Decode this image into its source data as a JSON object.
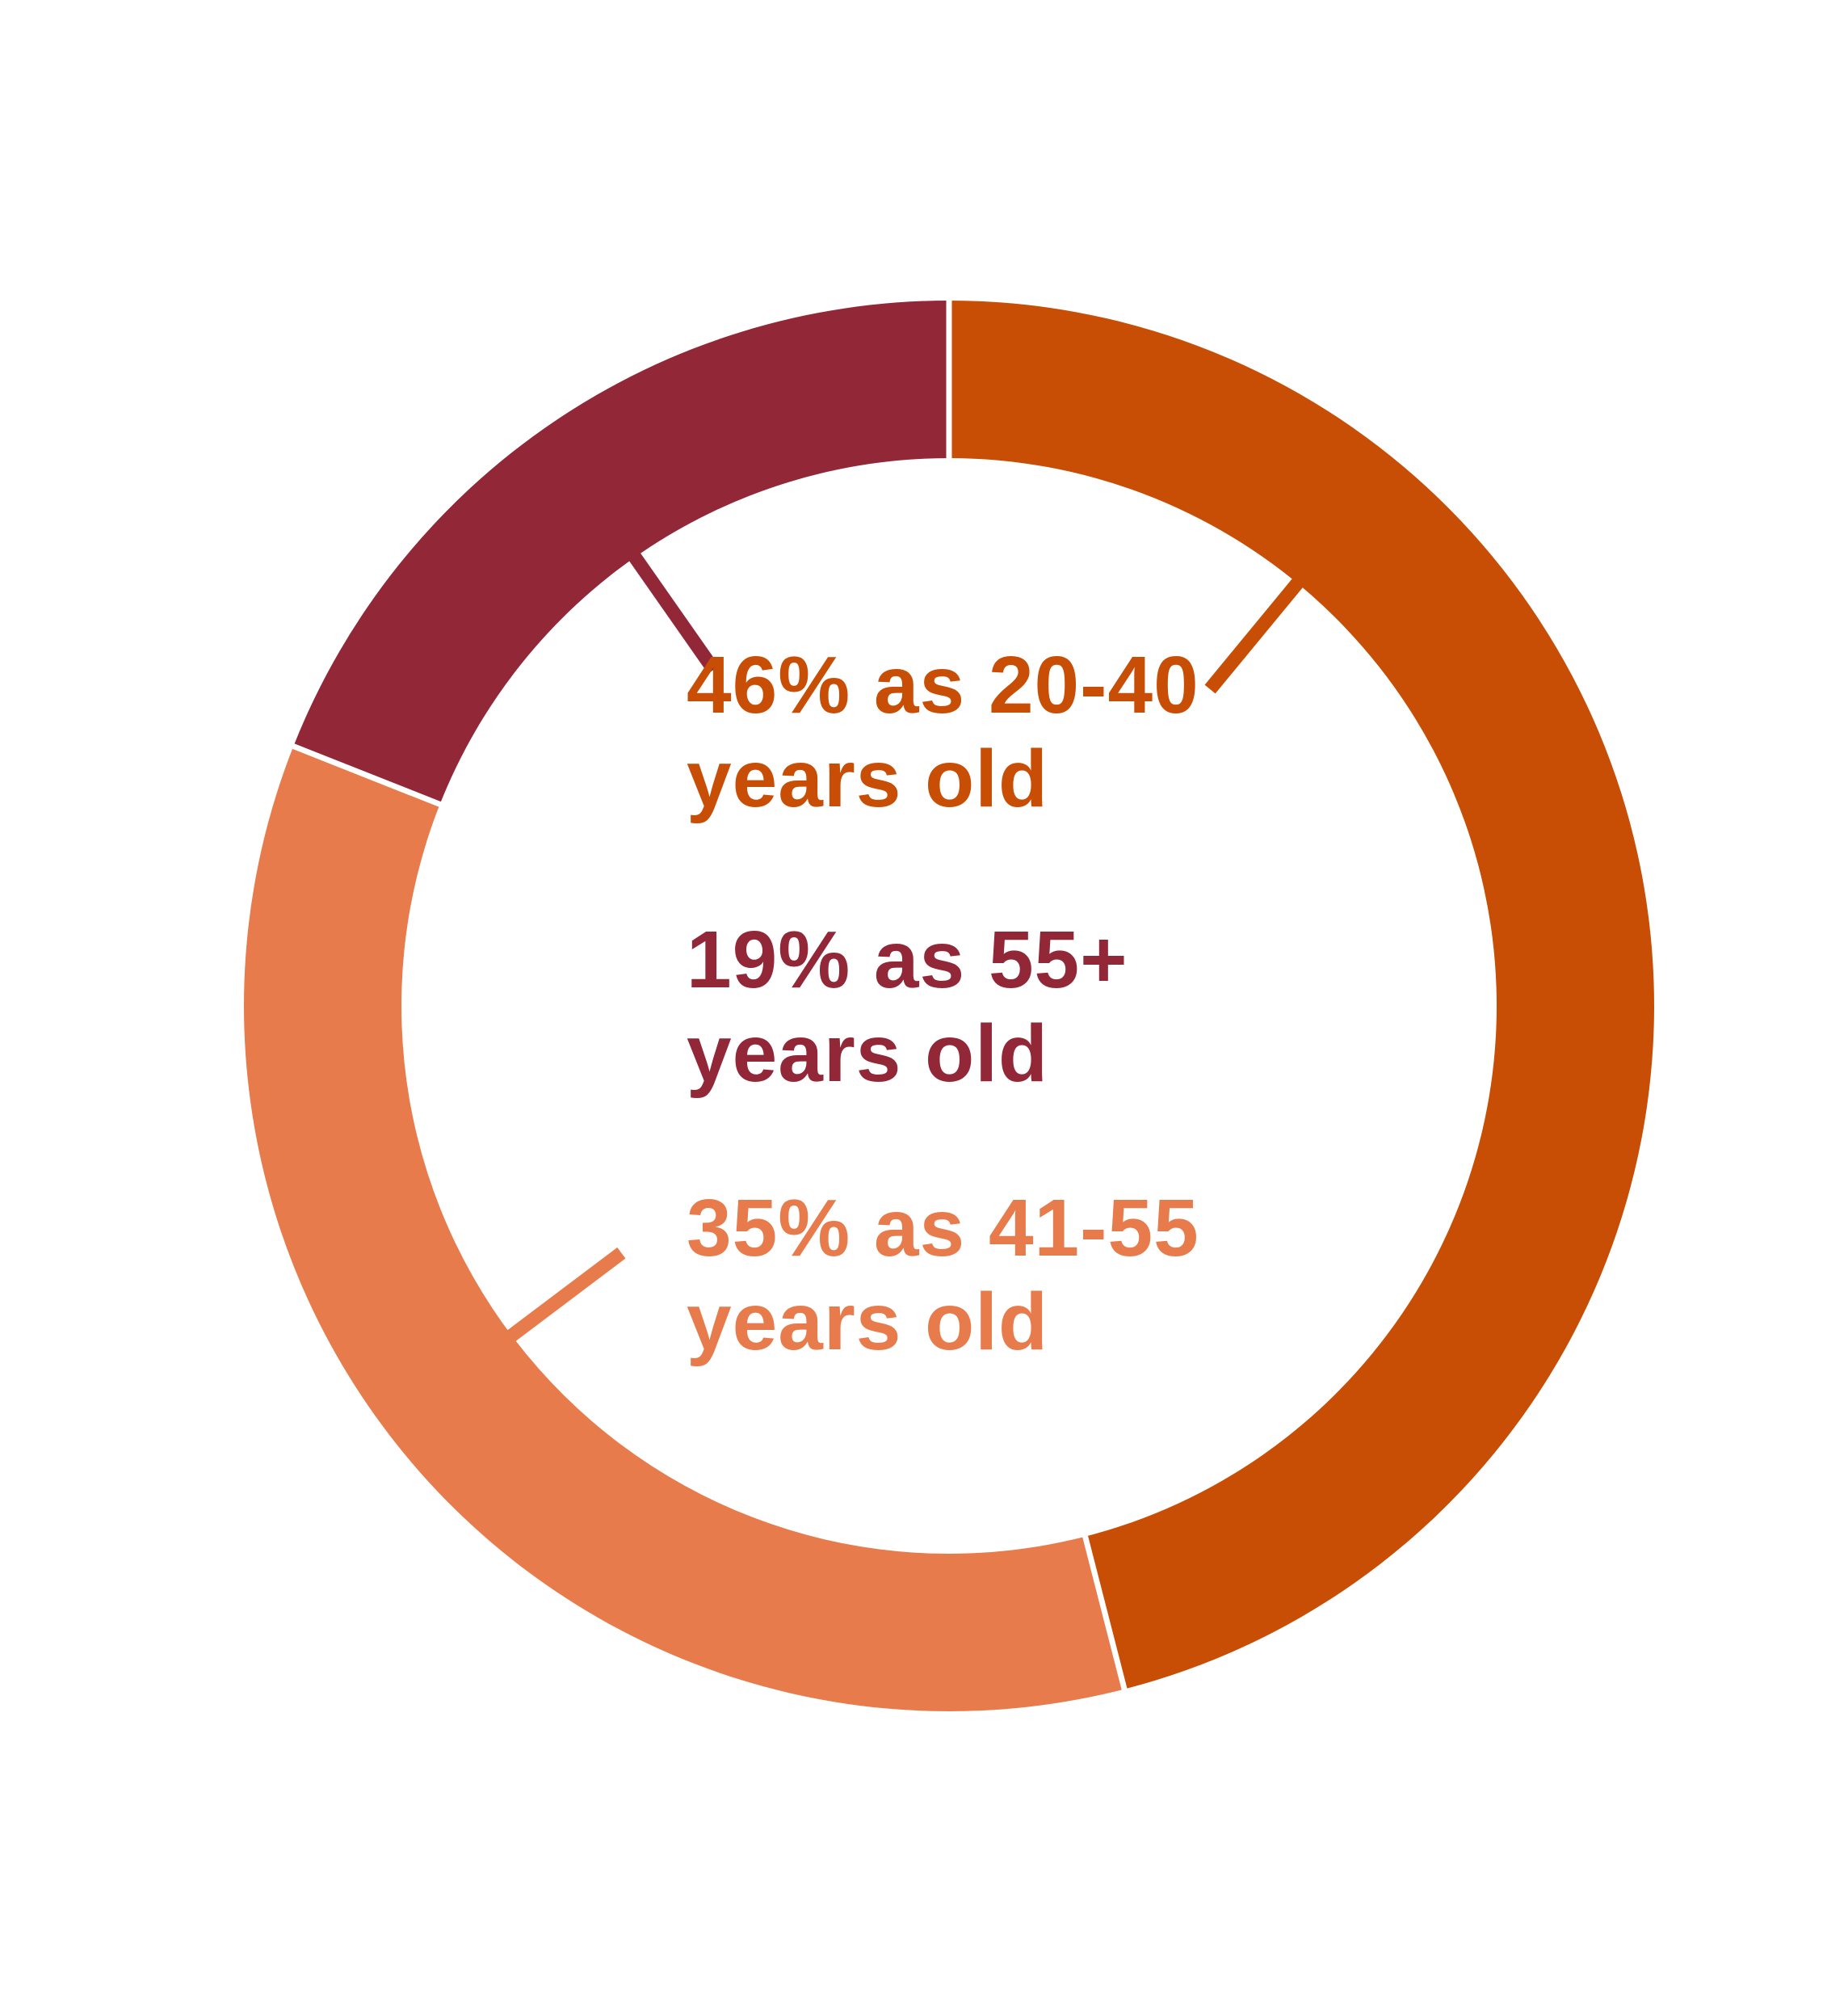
{
  "chart_data": {
    "type": "pie",
    "donut": true,
    "title": "",
    "legend": "none",
    "slices": [
      {
        "label_line1": "46% as 20-40",
        "label_line2": "years old",
        "value": 46,
        "color": "#c84e06"
      },
      {
        "label_line1": "19% as 55+",
        "label_line2": "years old",
        "value": 19,
        "color": "#922738"
      },
      {
        "label_line1": "35% as 41-55",
        "label_line2": "years old",
        "value": 35,
        "color": "#e87b4b"
      }
    ]
  }
}
